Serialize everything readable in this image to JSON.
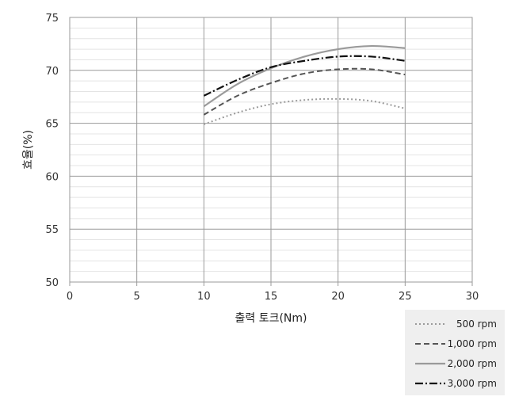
{
  "chart_data": {
    "type": "line",
    "title": "",
    "xlabel": "출력 토크(Nm)",
    "ylabel": "효율(%)",
    "xlim": [
      0,
      30
    ],
    "ylim": [
      50,
      75
    ],
    "x_ticks": [
      0,
      5,
      10,
      15,
      20,
      25,
      30
    ],
    "y_ticks": [
      50,
      55,
      60,
      65,
      70,
      75
    ],
    "grid": {
      "major": true,
      "minor": true
    },
    "legend_position": "bottom-right",
    "series": [
      {
        "name": "500 rpm",
        "color": "#9a9a9a",
        "dash": "dotted",
        "x": [
          10,
          12.5,
          15,
          17.5,
          20,
          22.5,
          25
        ],
        "y": [
          64.9,
          66.0,
          66.8,
          67.2,
          67.3,
          67.1,
          66.4
        ]
      },
      {
        "name": "1,000 rpm",
        "color": "#555555",
        "dash": "dashed",
        "x": [
          10,
          12.5,
          15,
          17.5,
          20,
          22.5,
          25
        ],
        "y": [
          65.8,
          67.6,
          68.8,
          69.7,
          70.1,
          70.1,
          69.6
        ]
      },
      {
        "name": "2,000 rpm",
        "color": "#9a9a9a",
        "dash": "solid",
        "x": [
          10,
          12.5,
          15,
          17.5,
          20,
          22.5,
          25
        ],
        "y": [
          66.6,
          68.7,
          70.2,
          71.3,
          72.0,
          72.3,
          72.1
        ]
      },
      {
        "name": "3,000 rpm",
        "color": "#111111",
        "dash": "dashdot",
        "x": [
          10,
          12.5,
          15,
          17.5,
          20,
          22.5,
          25
        ],
        "y": [
          67.6,
          69.1,
          70.3,
          70.9,
          71.3,
          71.3,
          70.9
        ]
      }
    ]
  }
}
